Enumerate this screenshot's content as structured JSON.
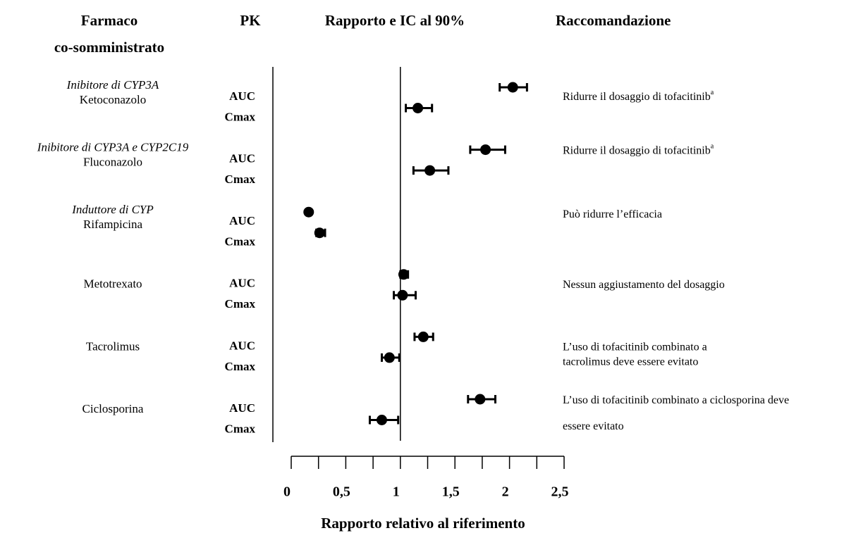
{
  "chart_data": {
    "type": "forest",
    "headers": {
      "drug": [
        "Farmaco",
        "co-somministrato"
      ],
      "pk": "PK",
      "ratio": "Rapporto e IC al 90%",
      "recommendation": "Raccomandazione"
    },
    "x_label": "Rapporto relativo al riferimento",
    "xlim": [
      0,
      2.5
    ],
    "xticks": [
      0,
      {
        "value": 0.5,
        "label": "0,5"
      },
      1,
      {
        "value": 1.5,
        "label": "1,5"
      },
      2,
      {
        "value": 2.5,
        "label": "2,5"
      }
    ],
    "minor_xticks": [
      0.25,
      0.75,
      1.25,
      1.75,
      2.25
    ],
    "reference_line": 1,
    "color": "#000000",
    "drugs": [
      {
        "class": "Inibitore di CYP3A",
        "name": "Ketoconazolo",
        "recommendation": [
          "Ridurre il dosaggio  di tofacitinib"
        ],
        "note": "a",
        "pk": [
          {
            "param": "AUC",
            "value": 2.03,
            "ci": [
              1.91,
              2.16
            ]
          },
          {
            "param": "Cmax",
            "value": 1.16,
            "ci": [
              1.05,
              1.29
            ]
          }
        ]
      },
      {
        "class": "Inibitore di CYP3A e CYP2C19",
        "name": "Fluconazolo",
        "recommendation": [
          "Ridurre il dosaggio di tofacitinib"
        ],
        "note": "a",
        "pk": [
          {
            "param": "AUC",
            "value": 1.78,
            "ci": [
              1.64,
              1.96
            ]
          },
          {
            "param": "Cmax",
            "value": 1.27,
            "ci": [
              1.12,
              1.44
            ]
          }
        ]
      },
      {
        "class": "Induttore di CYP",
        "name": "Rifampicina",
        "recommendation": [
          "Può ridurre l’efficacia"
        ],
        "pk": [
          {
            "param": "AUC",
            "value": 0.16,
            "ci": [
              0.15,
              0.17
            ]
          },
          {
            "param": "Cmax",
            "value": 0.26,
            "ci": [
              0.23,
              0.31
            ]
          }
        ]
      },
      {
        "name": "Metotrexato",
        "recommendation": [
          "Nessun aggiustamento del dosaggio"
        ],
        "pk": [
          {
            "param": "AUC",
            "value": 1.03,
            "ci": [
              1.0,
              1.07
            ]
          },
          {
            "param": "Cmax",
            "value": 1.02,
            "ci": [
              0.94,
              1.14
            ]
          }
        ]
      },
      {
        "name": "Tacrolimus",
        "recommendation": [
          "L’uso di tofacitinib combinato a",
          "tacrolimus deve essere evitato"
        ],
        "pk": [
          {
            "param": "AUC",
            "value": 1.21,
            "ci": [
              1.13,
              1.3
            ]
          },
          {
            "param": "Cmax",
            "value": 0.9,
            "ci": [
              0.83,
              0.99
            ]
          }
        ]
      },
      {
        "name": "Ciclosporina",
        "recommendation": [
          "L’uso di tofacitinib combinato a ciclosporina deve",
          "essere evitato"
        ],
        "pk": [
          {
            "param": "AUC",
            "value": 1.73,
            "ci": [
              1.62,
              1.87
            ]
          },
          {
            "param": "Cmax",
            "value": 0.83,
            "ci": [
              0.72,
              0.98
            ]
          }
        ]
      }
    ]
  }
}
